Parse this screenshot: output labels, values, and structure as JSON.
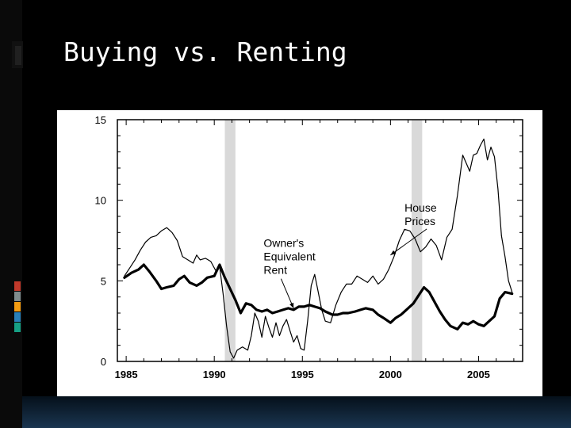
{
  "slide": {
    "title": "Buying vs. Renting",
    "accent_colors": [
      "#c0392b",
      "#7f8c8d",
      "#f39c12",
      "#2980b9",
      "#16a085"
    ]
  },
  "chart_data": {
    "type": "line",
    "title": "",
    "xlabel": "",
    "ylabel": "",
    "xlim": [
      1984.5,
      2007.5
    ],
    "ylim": [
      0,
      15
    ],
    "x_ticks": [
      1985,
      1990,
      1995,
      2000,
      2005
    ],
    "x_tick_labels": [
      "1985",
      "1990",
      "1995",
      "2000",
      "2005"
    ],
    "y_ticks": [
      0,
      5,
      10,
      15
    ],
    "y_tick_labels": [
      "0",
      "5",
      "10",
      "15"
    ],
    "grid": false,
    "legend": "none",
    "recessions": [
      [
        1990.6,
        1991.2
      ],
      [
        2001.2,
        2001.8
      ]
    ],
    "annotations": [
      {
        "lines": [
          "House",
          "Prices"
        ],
        "x": 2000.8,
        "y": 9.3,
        "arrow_to": [
          2000.0,
          6.6
        ]
      },
      {
        "lines": [
          "Owner's",
          "Equivalent",
          "Rent"
        ],
        "x": 1992.8,
        "y": 7.1,
        "arrow_to": [
          1994.5,
          3.3
        ]
      }
    ],
    "series": [
      {
        "name": "House Prices",
        "color": "#000000",
        "width": 1.2,
        "x": [
          1984.9,
          1985.2,
          1985.5,
          1985.8,
          1986.1,
          1986.4,
          1986.7,
          1987.0,
          1987.3,
          1987.6,
          1987.9,
          1988.2,
          1988.5,
          1988.8,
          1989.0,
          1989.2,
          1989.5,
          1989.8,
          1990.1,
          1990.3,
          1990.5,
          1990.7,
          1990.9,
          1991.1,
          1991.3,
          1991.6,
          1991.9,
          1992.1,
          1992.3,
          1992.5,
          1992.7,
          1992.9,
          1993.1,
          1993.3,
          1993.5,
          1993.7,
          1993.9,
          1994.1,
          1994.3,
          1994.5,
          1994.7,
          1994.9,
          1995.1,
          1995.3,
          1995.5,
          1995.7,
          1995.9,
          1996.1,
          1996.3,
          1996.6,
          1996.9,
          1997.2,
          1997.5,
          1997.8,
          1998.1,
          1998.4,
          1998.7,
          1999.0,
          1999.3,
          1999.6,
          1999.9,
          2000.2,
          2000.5,
          2000.8,
          2001.1,
          2001.4,
          2001.7,
          2002.0,
          2002.3,
          2002.6,
          2002.9,
          2003.2,
          2003.5,
          2003.8,
          2004.1,
          2004.3,
          2004.5,
          2004.7,
          2004.9,
          2005.1,
          2005.3,
          2005.5,
          2005.7,
          2005.9,
          2006.1,
          2006.3,
          2006.5,
          2006.7,
          2006.9
        ],
        "y": [
          5.3,
          5.8,
          6.3,
          6.9,
          7.4,
          7.7,
          7.8,
          8.1,
          8.3,
          8.0,
          7.5,
          6.5,
          6.3,
          6.1,
          6.6,
          6.3,
          6.4,
          6.2,
          5.6,
          5.9,
          4.2,
          2.2,
          0.6,
          0.2,
          0.7,
          0.9,
          0.7,
          1.6,
          3.0,
          2.5,
          1.5,
          2.8,
          2.1,
          1.5,
          2.4,
          1.6,
          2.2,
          2.6,
          1.9,
          1.2,
          1.6,
          0.8,
          0.7,
          2.5,
          4.7,
          5.4,
          4.3,
          3.2,
          2.5,
          2.4,
          3.5,
          4.3,
          4.8,
          4.8,
          5.3,
          5.1,
          4.9,
          5.3,
          4.8,
          5.1,
          5.7,
          6.5,
          7.5,
          8.2,
          8.1,
          7.6,
          6.8,
          7.1,
          7.6,
          7.2,
          6.3,
          7.7,
          8.2,
          10.3,
          12.8,
          12.3,
          11.8,
          12.8,
          12.9,
          13.4,
          13.8,
          12.5,
          13.3,
          12.7,
          10.7,
          7.8,
          6.5,
          5.0,
          4.3
        ]
      },
      {
        "name": "Owner's Equivalent Rent",
        "color": "#000000",
        "width": 3.2,
        "x": [
          1984.9,
          1985.3,
          1985.7,
          1986.0,
          1986.3,
          1986.7,
          1987.0,
          1987.3,
          1987.7,
          1988.0,
          1988.3,
          1988.6,
          1989.0,
          1989.3,
          1989.6,
          1990.0,
          1990.3,
          1990.6,
          1990.9,
          1991.2,
          1991.5,
          1991.8,
          1992.1,
          1992.4,
          1992.7,
          1993.0,
          1993.3,
          1993.6,
          1993.9,
          1994.2,
          1994.5,
          1994.8,
          1995.1,
          1995.4,
          1995.7,
          1996.0,
          1996.3,
          1996.7,
          1997.0,
          1997.3,
          1997.6,
          1998.0,
          1998.3,
          1998.6,
          1999.0,
          1999.3,
          1999.6,
          2000.0,
          2000.3,
          2000.6,
          2001.0,
          2001.3,
          2001.6,
          2001.9,
          2002.2,
          2002.5,
          2002.8,
          2003.1,
          2003.4,
          2003.8,
          2004.1,
          2004.4,
          2004.7,
          2005.0,
          2005.3,
          2005.6,
          2005.9,
          2006.2,
          2006.5,
          2006.9
        ],
        "y": [
          5.2,
          5.5,
          5.7,
          6.0,
          5.6,
          5.0,
          4.5,
          4.6,
          4.7,
          5.1,
          5.3,
          4.9,
          4.7,
          4.9,
          5.2,
          5.3,
          6.0,
          5.2,
          4.5,
          3.8,
          3.0,
          3.6,
          3.5,
          3.2,
          3.1,
          3.2,
          3.0,
          3.1,
          3.2,
          3.3,
          3.2,
          3.4,
          3.4,
          3.5,
          3.4,
          3.3,
          3.1,
          2.9,
          2.9,
          3.0,
          3.0,
          3.1,
          3.2,
          3.3,
          3.2,
          2.9,
          2.7,
          2.4,
          2.7,
          2.9,
          3.3,
          3.6,
          4.1,
          4.6,
          4.3,
          3.7,
          3.1,
          2.6,
          2.2,
          2.0,
          2.4,
          2.3,
          2.5,
          2.3,
          2.2,
          2.5,
          2.8,
          3.9,
          4.3,
          4.2
        ]
      }
    ]
  }
}
